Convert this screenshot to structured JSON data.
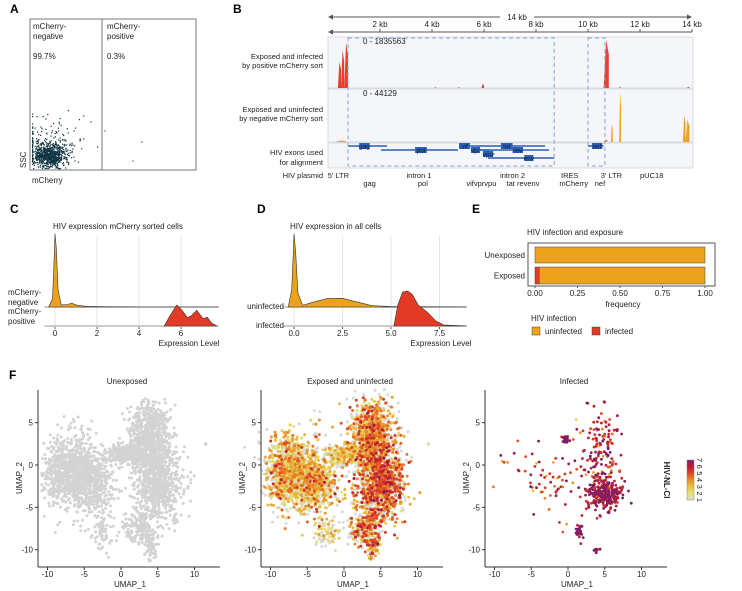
{
  "panel_labels": {
    "a": "A",
    "b": "B",
    "c": "C",
    "d": "D",
    "e": "E",
    "f": "F"
  },
  "chart_data": [
    {
      "panel": "A",
      "type": "scatter",
      "xlabel": "mCherry",
      "ylabel": "SSC",
      "gates": [
        {
          "label_line1": "mCherry-",
          "label_line2": "negative",
          "percent": "99.7%",
          "color": "#0d3440"
        },
        {
          "label_line1": "mCherry-",
          "label_line2": "positive",
          "percent": "0.3%",
          "color": "#e8402a"
        }
      ]
    },
    {
      "panel": "B",
      "type": "area",
      "scale_label": "14 kb",
      "xlim_kb": [
        0,
        14
      ],
      "tick_labels": [
        "2 kb",
        "4 kb",
        "6 kb",
        "8 kb",
        "10 kb",
        "12 kb",
        "14 kb"
      ],
      "ticks_kb": [
        2,
        4,
        6,
        8,
        10,
        12,
        14
      ],
      "tracks": [
        {
          "label_line1": "Exposed and infected",
          "label_line2": "by positive mCherry sort",
          "range": "0 - 1835563",
          "color": "#e8402a",
          "peaks": [
            [
              0.38,
              0.5,
              0.55
            ],
            [
              0.5,
              0.62,
              0.8
            ],
            [
              0.62,
              0.77,
              0.95
            ],
            [
              4.1,
              4.15,
              0.02
            ],
            [
              5.0,
              5.05,
              0.02
            ],
            [
              5.9,
              6.0,
              0.08
            ],
            [
              10.6,
              10.8,
              1.0
            ],
            [
              11.2,
              11.25,
              0.03
            ],
            [
              13.8,
              13.9,
              0.02
            ]
          ]
        },
        {
          "label_line1": "Exposed and uninfected",
          "label_line2": "by negative mCherry sort",
          "range": "0 - 44129",
          "color": "#f0a020",
          "peaks": [
            [
              0.3,
              0.7,
              0.03
            ],
            [
              10.6,
              10.75,
              0.05
            ],
            [
              10.88,
              10.95,
              0.37
            ],
            [
              11.2,
              11.27,
              1.0
            ],
            [
              13.65,
              13.75,
              0.54
            ],
            [
              13.75,
              13.9,
              0.45
            ]
          ]
        }
      ],
      "exon_track": {
        "label_line1": "HIV exons used",
        "label_line2": "for alignment",
        "color": "#2d5fb5",
        "exons": [
          {
            "name": "gag",
            "line": [
              0.77,
              2.27
            ],
            "box": [
              1.2,
              1.6
            ],
            "row": 0
          },
          {
            "name": "pol",
            "line": [
              2.04,
              5.0
            ],
            "box": [
              3.35,
              3.8
            ],
            "row": 1
          },
          {
            "name": "vif",
            "line": [
              5.04,
              5.8
            ],
            "box": [
              5.04,
              5.46
            ],
            "row": 0
          },
          {
            "name": "vpr",
            "line": [
              5.5,
              6.2
            ],
            "box": [
              5.5,
              5.85
            ],
            "row": 1
          },
          {
            "name": "vpu",
            "line": [
              5.96,
              6.4
            ],
            "box": [
              5.96,
              6.35
            ],
            "row": 2
          },
          {
            "name": "tat",
            "line": [
              5.77,
              8.35
            ],
            "box": [
              6.65,
              7.1
            ],
            "row": 0
          },
          {
            "name": "rev",
            "line": [
              5.77,
              8.5
            ],
            "box": [
              7.1,
              7.5
            ],
            "row": 1
          },
          {
            "name": "env",
            "line": [
              6.15,
              8.7
            ],
            "box": [
              7.55,
              7.9
            ],
            "row": 3
          },
          {
            "name": "nef",
            "line": [
              10.0,
              10.6
            ],
            "box": [
              10.15,
              10.55
            ],
            "row": 0
          }
        ]
      },
      "highlight_regions_kb": [
        [
          0.77,
          8.7
        ],
        [
          10.0,
          10.65
        ]
      ],
      "plasmid_label": "HIV plasmid",
      "plasmid_features": [
        {
          "name": "5' LTR",
          "kb": 0.4,
          "row": 0
        },
        {
          "name": "gag",
          "kb": 1.6,
          "row": 1
        },
        {
          "name": "intron 1",
          "kb": 3.5,
          "row": 0
        },
        {
          "name": "pol",
          "kb": 3.65,
          "row": 1
        },
        {
          "name": "vifvprvpu",
          "kb": 5.9,
          "row": 1
        },
        {
          "name": "intron 2",
          "kb": 7.1,
          "row": 0
        },
        {
          "name": "tat revenv",
          "kb": 7.5,
          "row": 1
        },
        {
          "name": "IRES",
          "kb": 9.3,
          "row": 0
        },
        {
          "name": "mCherry",
          "kb": 9.45,
          "row": 1
        },
        {
          "name": "3' LTR",
          "kb": 10.9,
          "row": 0
        },
        {
          "name": "nef",
          "kb": 10.46,
          "row": 1
        },
        {
          "name": "pUC18",
          "kb": 12.45,
          "row": 0
        }
      ]
    },
    {
      "panel": "C",
      "type": "area",
      "title": "HIV expression mCherry sorted cells",
      "xlabel": "Expression Level",
      "xlim": [
        -0.5,
        7.8
      ],
      "ticks": [
        0,
        2,
        4,
        6
      ],
      "tick_labels": [
        "0",
        "2",
        "4",
        "6"
      ],
      "grid": true,
      "series": [
        {
          "name": "mCherry-negative",
          "label_line1": "mCherry-",
          "label_line2": "negative",
          "color": "#eda21e",
          "points": [
            [
              -0.3,
              0
            ],
            [
              -0.12,
              0.4
            ],
            [
              -0.03,
              2.6
            ],
            [
              0,
              3.5
            ],
            [
              0.06,
              2.8
            ],
            [
              0.15,
              0.8
            ],
            [
              0.3,
              0.1
            ],
            [
              0.6,
              0.12
            ],
            [
              0.8,
              0.18
            ],
            [
              1.0,
              0.1
            ],
            [
              1.5,
              0.03
            ],
            [
              2.5,
              0.01
            ],
            [
              4,
              0
            ],
            [
              7.8,
              0
            ]
          ]
        },
        {
          "name": "mCherry-positive",
          "label_line1": "mCherry-",
          "label_line2": "positive",
          "color": "#e33a26",
          "points": [
            [
              5.2,
              0
            ],
            [
              5.45,
              0.45
            ],
            [
              5.8,
              1.0
            ],
            [
              6.05,
              0.75
            ],
            [
              6.3,
              0.4
            ],
            [
              6.5,
              0.5
            ],
            [
              6.75,
              0.75
            ],
            [
              6.9,
              0.55
            ],
            [
              7.05,
              0.35
            ],
            [
              7.25,
              0.42
            ],
            [
              7.45,
              0.15
            ],
            [
              7.7,
              0
            ]
          ]
        }
      ]
    },
    {
      "panel": "D",
      "type": "area",
      "title": "HIV expression in all cells",
      "xlabel": "Expression Level",
      "xlim": [
        -0.6,
        8.9
      ],
      "ticks": [
        0,
        2.5,
        5,
        7.5
      ],
      "tick_labels": [
        "0.0",
        "2.5",
        "5.0",
        "7.5"
      ],
      "grid": true,
      "series": [
        {
          "name": "uninfected",
          "color": "#eda21e",
          "points": [
            [
              -0.3,
              0
            ],
            [
              -0.12,
              0.5
            ],
            [
              -0.03,
              1.6
            ],
            [
              0,
              2.1
            ],
            [
              0.08,
              1.6
            ],
            [
              0.2,
              0.4
            ],
            [
              0.45,
              0.05
            ],
            [
              1.0,
              0.14
            ],
            [
              1.7,
              0.24
            ],
            [
              2.5,
              0.25
            ],
            [
              3.2,
              0.15
            ],
            [
              4.0,
              0.04
            ],
            [
              5.0,
              0.01
            ],
            [
              8.9,
              0
            ]
          ]
        },
        {
          "name": "infected",
          "color": "#e33a26",
          "points": [
            [
              5.15,
              0
            ],
            [
              5.35,
              0.6
            ],
            [
              5.6,
              0.97
            ],
            [
              5.85,
              1.0
            ],
            [
              6.1,
              0.9
            ],
            [
              6.4,
              0.6
            ],
            [
              6.9,
              0.38
            ],
            [
              7.3,
              0.15
            ],
            [
              7.7,
              0.03
            ],
            [
              8.9,
              0
            ]
          ]
        }
      ]
    },
    {
      "panel": "E",
      "type": "bar",
      "title": "HIV infection and exposure",
      "xlabel": "frequency",
      "xlim": [
        0,
        1
      ],
      "tick_labels": [
        "0.00",
        "0.25",
        "0.50",
        "0.75",
        "1.00"
      ],
      "ticks": [
        0,
        0.25,
        0.5,
        0.75,
        1
      ],
      "categories": [
        "Unexposed",
        "Exposed"
      ],
      "legend_title": "HIV infection",
      "legend_position": "bottom",
      "series": [
        {
          "name": "infected",
          "color": "#e33a26",
          "values": [
            0,
            0.025
          ]
        },
        {
          "name": "uninfected",
          "color": "#eda21e",
          "values": [
            1.0,
            0.975
          ]
        }
      ]
    },
    {
      "panel": "F",
      "type": "scatter",
      "title": "Unexposed",
      "xlabel": "UMAP_1",
      "ylabel": "UMAP_2",
      "xlim": [
        -11.2,
        13.5
      ],
      "ylim": [
        -12.1,
        8.9
      ],
      "xticks": [
        -10,
        -5,
        0,
        5,
        10
      ],
      "yticks": [
        5,
        0,
        -5,
        -10
      ],
      "xtick_labels": [
        "-10",
        "-5",
        "0",
        "5",
        "10"
      ],
      "ytick_labels": [
        "5",
        "0",
        "-5",
        "-10"
      ],
      "point_color": "#d3d3d3",
      "clusters": [
        {
          "cx": -6.8,
          "cy": -0.8,
          "sx": 2.0,
          "sy": 2.1,
          "n": 900
        },
        {
          "cx": -3.5,
          "cy": -2.6,
          "sx": 1.4,
          "sy": 1.5,
          "n": 300
        },
        {
          "cx": 3.8,
          "cy": 3.6,
          "sx": 1.4,
          "sy": 2.0,
          "n": 650
        },
        {
          "cx": 5.0,
          "cy": -2.2,
          "sx": 1.6,
          "sy": 2.3,
          "n": 750
        },
        {
          "cx": 0.3,
          "cy": 1.2,
          "sx": 1.5,
          "sy": 0.6,
          "n": 220
        },
        {
          "cx": 2.6,
          "cy": -7.4,
          "sx": 1.1,
          "sy": 1.1,
          "n": 160
        },
        {
          "cx": 4.0,
          "cy": -9.4,
          "sx": 0.4,
          "sy": 0.8,
          "n": 60
        },
        {
          "cx": -2.4,
          "cy": -8.0,
          "sx": 0.9,
          "sy": 1.0,
          "n": 60
        },
        {
          "cx": 11.5,
          "cy": 2.5,
          "sx": 0.08,
          "sy": 0.08,
          "n": 3
        }
      ]
    },
    {
      "panel": "F",
      "type": "scatter",
      "title": "Exposed and uninfected",
      "xlabel": "UMAP_1",
      "ylabel": "UMAP_2",
      "xlim": [
        -11.2,
        13.5
      ],
      "ylim": [
        -12.1,
        8.9
      ],
      "xticks": [
        -10,
        -5,
        0,
        5,
        10
      ],
      "yticks": [
        5,
        0,
        -5,
        -10
      ],
      "xtick_labels": [
        "-10",
        "-5",
        "0",
        "5",
        "10"
      ],
      "ytick_labels": [
        "5",
        "0",
        "-5",
        "-10"
      ],
      "clusters": [
        {
          "cx": -6.8,
          "cy": -0.8,
          "sx": 2.0,
          "sy": 2.1,
          "n": 800,
          "expr": 3.0
        },
        {
          "cx": -3.5,
          "cy": -2.6,
          "sx": 1.4,
          "sy": 1.5,
          "n": 260,
          "expr": 3.0
        },
        {
          "cx": 3.8,
          "cy": 3.6,
          "sx": 1.4,
          "sy": 2.0,
          "n": 600,
          "expr": 3.6
        },
        {
          "cx": 5.0,
          "cy": -2.2,
          "sx": 1.6,
          "sy": 2.3,
          "n": 700,
          "expr": 4.3
        },
        {
          "cx": 0.3,
          "cy": 1.2,
          "sx": 1.5,
          "sy": 0.6,
          "n": 200,
          "expr": 2.5
        },
        {
          "cx": 2.6,
          "cy": -7.4,
          "sx": 1.1,
          "sy": 1.1,
          "n": 140,
          "expr": 3.8
        },
        {
          "cx": 4.0,
          "cy": -9.4,
          "sx": 0.4,
          "sy": 0.8,
          "n": 60,
          "expr": 3.8
        },
        {
          "cx": -2.4,
          "cy": -8.0,
          "sx": 0.9,
          "sy": 1.0,
          "n": 50,
          "expr": 2.3
        },
        {
          "cx": 11.5,
          "cy": 2.5,
          "sx": 0.08,
          "sy": 0.08,
          "n": 3,
          "expr": 1.5
        }
      ]
    },
    {
      "panel": "F",
      "type": "scatter",
      "title": "Infected",
      "xlabel": "UMAP_1",
      "ylabel": "UMAP_2",
      "xlim": [
        -11.2,
        13.5
      ],
      "ylim": [
        -12.1,
        8.9
      ],
      "xticks": [
        -10,
        -5,
        0,
        5,
        10
      ],
      "yticks": [
        5,
        0,
        -5,
        -10
      ],
      "xtick_labels": [
        "-10",
        "-5",
        "0",
        "5",
        "10"
      ],
      "ytick_labels": [
        "5",
        "0",
        "-5",
        "-10"
      ],
      "clusters": [
        {
          "cx": 5.0,
          "cy": -3.4,
          "sx": 1.2,
          "sy": 0.9,
          "n": 260,
          "expr": 6.2
        },
        {
          "cx": 4.3,
          "cy": 1.0,
          "sx": 1.3,
          "sy": 2.8,
          "n": 160,
          "expr": 5.8
        },
        {
          "cx": -0.3,
          "cy": 3.0,
          "sx": 0.3,
          "sy": 0.25,
          "n": 25,
          "expr": 7
        },
        {
          "cx": 1.6,
          "cy": -7.8,
          "sx": 0.25,
          "sy": 0.45,
          "n": 25,
          "expr": 7
        },
        {
          "cx": 3.8,
          "cy": -10.0,
          "sx": 0.25,
          "sy": 0.15,
          "n": 10,
          "expr": 7
        },
        {
          "cx": -2.5,
          "cy": -3.0,
          "sx": 2.6,
          "sy": 2.4,
          "n": 55,
          "expr": 5.5
        },
        {
          "cx": -7.5,
          "cy": 0.0,
          "sx": 1.6,
          "sy": 1.0,
          "n": 10,
          "expr": 5.5
        },
        {
          "cx": 2.8,
          "cy": 7.2,
          "sx": 0.3,
          "sy": 0.3,
          "n": 3,
          "expr": 5.5
        }
      ]
    }
  ],
  "colorbar": {
    "title": "HIV-NL-CI",
    "labels": [
      "1",
      "2",
      "3",
      "4",
      "5",
      "6",
      "7"
    ],
    "range": [
      1,
      7
    ],
    "stops": [
      "#dcdcc8",
      "#e6e27a",
      "#e9c23e",
      "#e8902c",
      "#df4422",
      "#bf1a32",
      "#7d1e66"
    ]
  }
}
